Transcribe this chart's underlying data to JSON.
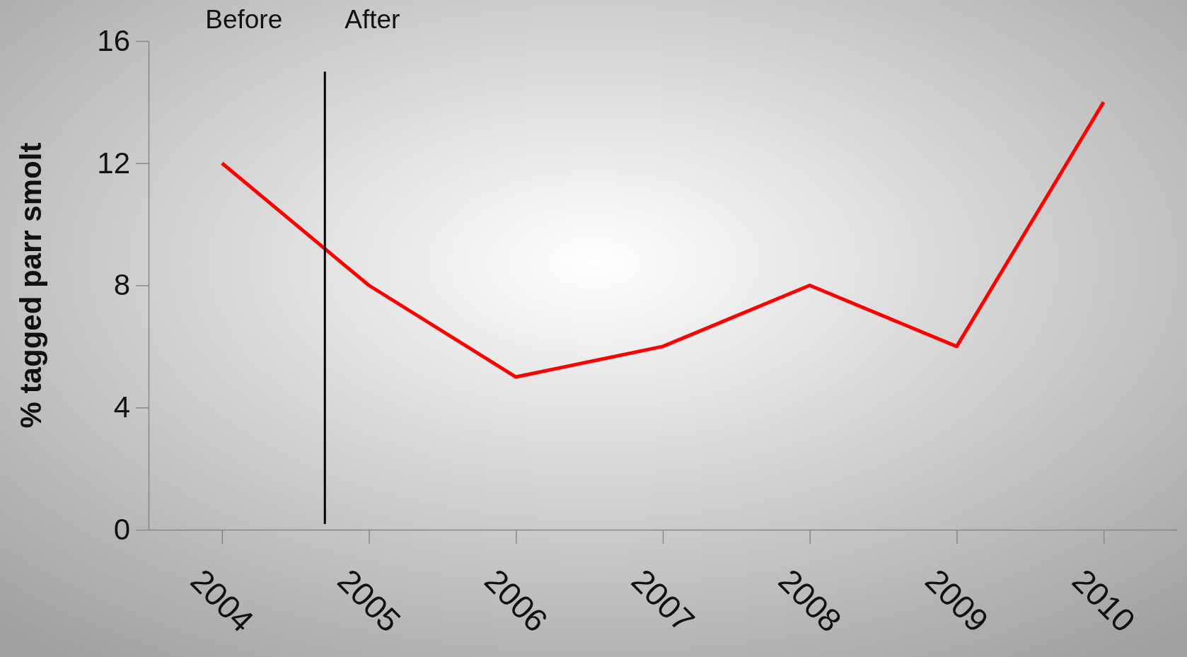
{
  "chart_data": {
    "type": "line",
    "ylabel": "% tagged parr smolt",
    "x": [
      2004,
      2005,
      2006,
      2007,
      2008,
      2009,
      2010
    ],
    "series": [
      {
        "color": "#ff0000",
        "values": [
          12,
          8,
          5,
          6,
          8,
          6,
          14
        ]
      }
    ],
    "xlim": [
      2003.5,
      2010.5
    ],
    "xticks": [
      2004,
      2005,
      2006,
      2007,
      2008,
      2009,
      2010
    ],
    "ylim": [
      0,
      16
    ],
    "yticks": [
      0,
      4,
      8,
      12,
      16
    ],
    "ref_lines": [
      {
        "axis": "x",
        "value": 2004.7,
        "color": "#000000"
      }
    ],
    "annotations": [
      "Before",
      "After"
    ],
    "grid": false,
    "marker": "none",
    "line_style": "solid"
  }
}
